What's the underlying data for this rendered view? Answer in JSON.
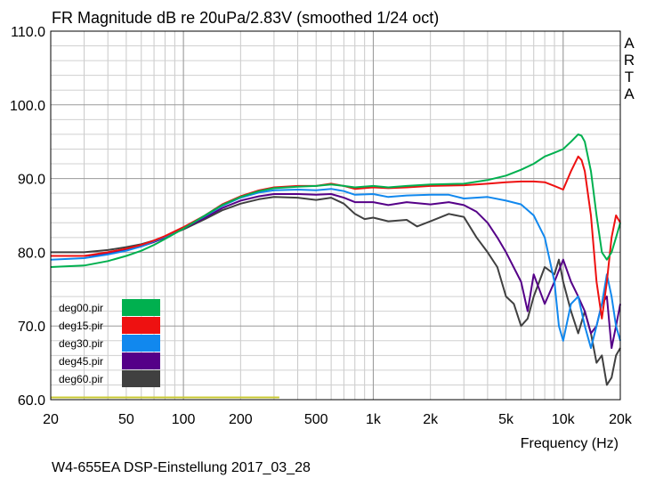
{
  "chart_data": {
    "type": "line",
    "title": "FR Magnitude dB re 20uPa/2.83V (smoothed 1/24 oct)",
    "xlabel": "Frequency (Hz)",
    "ylabel": "",
    "xscale": "log",
    "xlim": [
      20,
      20000
    ],
    "ylim": [
      60,
      110
    ],
    "x_tick_values": [
      20,
      50,
      100,
      200,
      500,
      1000,
      2000,
      5000,
      10000,
      20000
    ],
    "x_tick_labels": [
      "20",
      "50",
      "100",
      "200",
      "500",
      "1k",
      "2k",
      "5k",
      "10k",
      "20k"
    ],
    "y_tick_values": [
      60,
      70,
      80,
      90,
      100,
      110
    ],
    "y_tick_labels": [
      "60.0",
      "70.0",
      "80.0",
      "90.0",
      "100.0",
      "110.0"
    ],
    "grid": true,
    "legend_position": "bottom-left",
    "watermark": [
      "A",
      "R",
      "T",
      "A"
    ],
    "footer": "W4-655EA DSP-Einstellung 2017_03_28",
    "reference_line": {
      "color": "#c8c832",
      "x_from": 20,
      "x_to": 320,
      "y": 60.3
    },
    "series": [
      {
        "name": "deg00.pir",
        "color": "#00b04f",
        "points": [
          [
            20,
            78
          ],
          [
            30,
            78.2
          ],
          [
            40,
            78.8
          ],
          [
            50,
            79.5
          ],
          [
            60,
            80.2
          ],
          [
            70,
            81
          ],
          [
            80,
            81.8
          ],
          [
            100,
            83.2
          ],
          [
            130,
            85
          ],
          [
            160,
            86.4
          ],
          [
            200,
            87.5
          ],
          [
            250,
            88.3
          ],
          [
            300,
            88.7
          ],
          [
            400,
            88.9
          ],
          [
            500,
            89
          ],
          [
            600,
            89.2
          ],
          [
            700,
            89
          ],
          [
            800,
            88.8
          ],
          [
            1000,
            89
          ],
          [
            1200,
            88.8
          ],
          [
            1500,
            89
          ],
          [
            2000,
            89.2
          ],
          [
            3000,
            89.3
          ],
          [
            4000,
            89.8
          ],
          [
            5000,
            90.4
          ],
          [
            6000,
            91.2
          ],
          [
            7000,
            92
          ],
          [
            8000,
            93
          ],
          [
            9000,
            93.5
          ],
          [
            10000,
            94
          ],
          [
            11000,
            95
          ],
          [
            12000,
            96
          ],
          [
            12500,
            95.8
          ],
          [
            13000,
            95
          ],
          [
            14000,
            91
          ],
          [
            15000,
            85
          ],
          [
            16000,
            80
          ],
          [
            17000,
            79
          ],
          [
            18000,
            80
          ],
          [
            19000,
            82
          ],
          [
            20000,
            84
          ]
        ]
      },
      {
        "name": "deg15.pir",
        "color": "#ee1111",
        "points": [
          [
            20,
            79.5
          ],
          [
            30,
            79.5
          ],
          [
            40,
            80
          ],
          [
            50,
            80.5
          ],
          [
            60,
            81
          ],
          [
            70,
            81.6
          ],
          [
            80,
            82.2
          ],
          [
            100,
            83.4
          ],
          [
            130,
            85
          ],
          [
            160,
            86.5
          ],
          [
            200,
            87.6
          ],
          [
            250,
            88.4
          ],
          [
            300,
            88.8
          ],
          [
            400,
            89
          ],
          [
            500,
            89
          ],
          [
            600,
            89.3
          ],
          [
            700,
            89
          ],
          [
            800,
            88.6
          ],
          [
            1000,
            88.8
          ],
          [
            1200,
            88.7
          ],
          [
            1500,
            88.8
          ],
          [
            2000,
            89
          ],
          [
            3000,
            89.1
          ],
          [
            4000,
            89.3
          ],
          [
            5000,
            89.5
          ],
          [
            6000,
            89.6
          ],
          [
            7000,
            89.6
          ],
          [
            8000,
            89.5
          ],
          [
            9000,
            89
          ],
          [
            10000,
            88.5
          ],
          [
            11000,
            91
          ],
          [
            12000,
            93
          ],
          [
            12500,
            92.5
          ],
          [
            13000,
            91
          ],
          [
            14000,
            85
          ],
          [
            15000,
            76
          ],
          [
            16000,
            71
          ],
          [
            17000,
            76
          ],
          [
            18000,
            82
          ],
          [
            19000,
            85
          ],
          [
            20000,
            84
          ]
        ]
      },
      {
        "name": "deg30.pir",
        "color": "#1188ee",
        "points": [
          [
            20,
            79
          ],
          [
            30,
            79.2
          ],
          [
            40,
            79.7
          ],
          [
            50,
            80.2
          ],
          [
            60,
            80.8
          ],
          [
            70,
            81.5
          ],
          [
            80,
            82.1
          ],
          [
            100,
            83.3
          ],
          [
            130,
            84.9
          ],
          [
            160,
            86.3
          ],
          [
            200,
            87.4
          ],
          [
            250,
            88.1
          ],
          [
            300,
            88.4
          ],
          [
            400,
            88.5
          ],
          [
            500,
            88.4
          ],
          [
            600,
            88.6
          ],
          [
            700,
            88.3
          ],
          [
            800,
            87.8
          ],
          [
            1000,
            87.9
          ],
          [
            1200,
            87.5
          ],
          [
            1500,
            87.7
          ],
          [
            2000,
            87.8
          ],
          [
            2500,
            87.8
          ],
          [
            3000,
            87.3
          ],
          [
            4000,
            87.5
          ],
          [
            5000,
            87
          ],
          [
            6000,
            86.5
          ],
          [
            7000,
            85
          ],
          [
            8000,
            82
          ],
          [
            9000,
            76
          ],
          [
            9500,
            70
          ],
          [
            10000,
            68
          ],
          [
            11000,
            73
          ],
          [
            12000,
            74
          ],
          [
            13000,
            70
          ],
          [
            14000,
            67
          ],
          [
            15000,
            70
          ],
          [
            16000,
            73
          ],
          [
            17000,
            77
          ],
          [
            18000,
            74
          ],
          [
            19000,
            70
          ],
          [
            20000,
            68
          ]
        ]
      },
      {
        "name": "deg45.pir",
        "color": "#550088",
        "points": [
          [
            20,
            79.5
          ],
          [
            30,
            79.5
          ],
          [
            40,
            79.8
          ],
          [
            50,
            80.3
          ],
          [
            60,
            80.8
          ],
          [
            70,
            81.4
          ],
          [
            80,
            82
          ],
          [
            100,
            83.2
          ],
          [
            130,
            84.7
          ],
          [
            160,
            86
          ],
          [
            200,
            87
          ],
          [
            250,
            87.6
          ],
          [
            300,
            87.9
          ],
          [
            400,
            87.9
          ],
          [
            500,
            87.8
          ],
          [
            600,
            87.9
          ],
          [
            700,
            87.4
          ],
          [
            800,
            86.8
          ],
          [
            1000,
            86.8
          ],
          [
            1200,
            86.4
          ],
          [
            1500,
            86.8
          ],
          [
            2000,
            86.5
          ],
          [
            2500,
            86.8
          ],
          [
            3000,
            86.4
          ],
          [
            3500,
            85.5
          ],
          [
            4000,
            84
          ],
          [
            4500,
            82
          ],
          [
            5000,
            80
          ],
          [
            6000,
            76
          ],
          [
            6500,
            72
          ],
          [
            7000,
            77
          ],
          [
            8000,
            73
          ],
          [
            9000,
            76
          ],
          [
            10000,
            79
          ],
          [
            11000,
            76
          ],
          [
            12000,
            74
          ],
          [
            13000,
            72
          ],
          [
            14000,
            69
          ],
          [
            15000,
            70
          ],
          [
            16000,
            73
          ],
          [
            17000,
            74
          ],
          [
            18000,
            67
          ],
          [
            19000,
            70
          ],
          [
            20000,
            73
          ]
        ]
      },
      {
        "name": "deg60.pir",
        "color": "#404040",
        "points": [
          [
            20,
            80
          ],
          [
            30,
            80
          ],
          [
            40,
            80.3
          ],
          [
            50,
            80.7
          ],
          [
            60,
            81.1
          ],
          [
            70,
            81.6
          ],
          [
            80,
            82.1
          ],
          [
            100,
            83.1
          ],
          [
            130,
            84.5
          ],
          [
            160,
            85.7
          ],
          [
            200,
            86.6
          ],
          [
            250,
            87.2
          ],
          [
            300,
            87.5
          ],
          [
            400,
            87.4
          ],
          [
            500,
            87.1
          ],
          [
            600,
            87.4
          ],
          [
            700,
            86.6
          ],
          [
            800,
            85.2
          ],
          [
            900,
            84.5
          ],
          [
            1000,
            84.7
          ],
          [
            1200,
            84.2
          ],
          [
            1500,
            84.4
          ],
          [
            1700,
            83.5
          ],
          [
            2000,
            84.2
          ],
          [
            2500,
            85.2
          ],
          [
            3000,
            84.8
          ],
          [
            3500,
            82
          ],
          [
            4000,
            80
          ],
          [
            4500,
            78
          ],
          [
            5000,
            74
          ],
          [
            5500,
            73
          ],
          [
            6000,
            70
          ],
          [
            6500,
            71
          ],
          [
            7000,
            74
          ],
          [
            8000,
            78
          ],
          [
            9000,
            77
          ],
          [
            9500,
            79
          ],
          [
            10000,
            76
          ],
          [
            11000,
            72
          ],
          [
            12000,
            69
          ],
          [
            13000,
            72
          ],
          [
            14000,
            69
          ],
          [
            15000,
            65
          ],
          [
            16000,
            66
          ],
          [
            17000,
            62
          ],
          [
            18000,
            63
          ],
          [
            19000,
            66
          ],
          [
            20000,
            67
          ]
        ]
      }
    ]
  }
}
